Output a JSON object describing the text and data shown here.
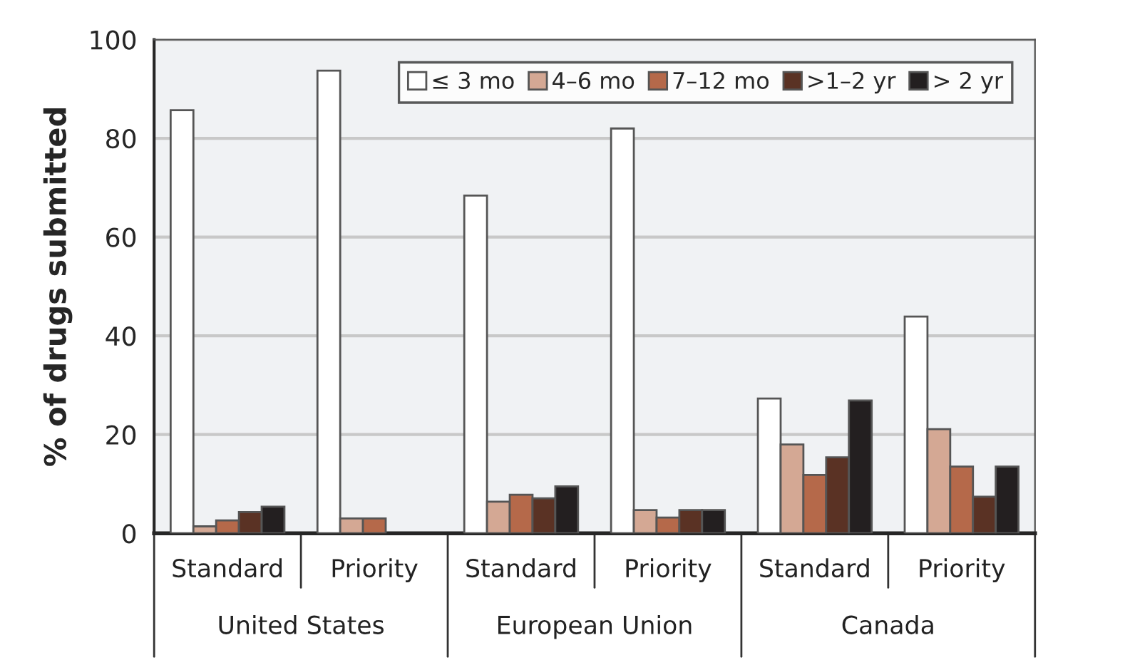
{
  "chart_data": {
    "type": "bar",
    "ylabel": "% of drugs submitted",
    "categories": [
      "Standard",
      "Priority",
      "Standard",
      "Priority",
      "Standard",
      "Priority"
    ],
    "annotations": [
      "United States",
      "European Union",
      "Canada"
    ],
    "series": [
      {
        "name": "≤ 3 mo",
        "color": "#ffffff",
        "values": [
          85.7,
          93.7,
          68.4,
          82.0,
          27.3,
          43.9
        ]
      },
      {
        "name": "4–6 mo",
        "color": "#d4a894",
        "values": [
          1.4,
          3.0,
          6.4,
          4.7,
          18.0,
          21.1
        ]
      },
      {
        "name": "7–12 mo",
        "color": "#b5694a",
        "values": [
          2.6,
          3.0,
          7.8,
          3.2,
          11.8,
          13.5
        ]
      },
      {
        "name": ">1–2 yr",
        "color": "#5a3224",
        "values": [
          4.3,
          null,
          7.1,
          4.7,
          15.4,
          7.4
        ]
      },
      {
        "name": "> 2 yr",
        "color": "#231f20",
        "values": [
          5.4,
          null,
          9.5,
          4.7,
          26.9,
          13.5
        ]
      }
    ],
    "ylim": [
      0,
      100
    ],
    "yticks": [
      0,
      20,
      40,
      60,
      80,
      100
    ],
    "grid": "y",
    "legend": "top right"
  }
}
